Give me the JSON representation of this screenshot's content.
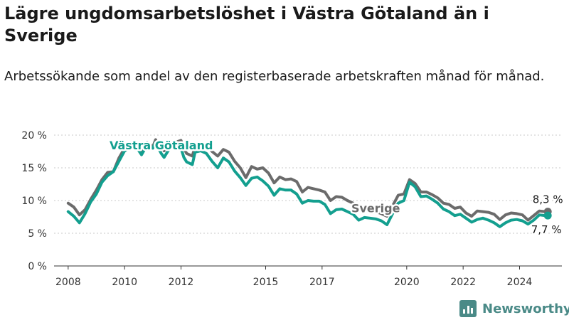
{
  "header": {
    "title": "Lägre ungdomsarbetslöshet i Västra Götaland än i Sverige",
    "subtitle": "Arbetssökande som andel av den registerbaserade arbetskraften månad för månad."
  },
  "brand": {
    "name": "Newsworthy",
    "icon": "bar-chart-logo-icon",
    "color": "#4a8a87"
  },
  "chart_data": {
    "type": "line",
    "title": "Lägre ungdomsarbetslöshet i Västra Götaland än i Sverige",
    "subtitle": "Arbetssökande som andel av den registerbaserade arbetskraften månad för månad.",
    "xlabel": "",
    "ylabel": "",
    "x_ticks": [
      "2008",
      "2010",
      "2012",
      "2015",
      "2017",
      "2020",
      "2022",
      "2024"
    ],
    "x_tick_years": [
      2008,
      2010,
      2012,
      2015,
      2017,
      2020,
      2022,
      2024
    ],
    "xlim": [
      2007.5,
      2025.5
    ],
    "y_ticks": [
      "0 %",
      "5 %",
      "10 %",
      "15 %",
      "20 %"
    ],
    "y_tick_values": [
      0,
      5,
      10,
      15,
      20
    ],
    "ylim": [
      0,
      20
    ],
    "grid": "horizontal-dashed",
    "legend": "inline-labels",
    "series": [
      {
        "name": "Sverige",
        "color": "#6b6b6b",
        "label_at": [
          2018.9,
          8.2
        ],
        "end_label": "8,3 %",
        "points": [
          [
            2008.0,
            9.6
          ],
          [
            2008.2,
            9.0
          ],
          [
            2008.4,
            7.8
          ],
          [
            2008.6,
            8.6
          ],
          [
            2008.8,
            10.2
          ],
          [
            2009.0,
            11.6
          ],
          [
            2009.2,
            13.2
          ],
          [
            2009.4,
            14.3
          ],
          [
            2009.6,
            14.4
          ],
          [
            2009.8,
            16.5
          ],
          [
            2010.0,
            18.0
          ],
          [
            2010.2,
            18.3
          ],
          [
            2010.4,
            18.6
          ],
          [
            2010.6,
            17.6
          ],
          [
            2010.8,
            18.9
          ],
          [
            2011.0,
            18.2
          ],
          [
            2011.1,
            19.3
          ],
          [
            2011.2,
            18.6
          ],
          [
            2011.3,
            18.5
          ],
          [
            2011.4,
            17.6
          ],
          [
            2011.6,
            18.7
          ],
          [
            2011.8,
            18.9
          ],
          [
            2012.0,
            19.2
          ],
          [
            2012.1,
            18.0
          ],
          [
            2012.2,
            17.2
          ],
          [
            2012.4,
            16.8
          ],
          [
            2012.5,
            18.3
          ],
          [
            2012.7,
            18.5
          ],
          [
            2012.9,
            18.6
          ],
          [
            2013.1,
            17.5
          ],
          [
            2013.3,
            16.8
          ],
          [
            2013.5,
            17.8
          ],
          [
            2013.7,
            17.4
          ],
          [
            2013.9,
            16.0
          ],
          [
            2014.1,
            15.0
          ],
          [
            2014.3,
            13.5
          ],
          [
            2014.5,
            15.2
          ],
          [
            2014.7,
            14.8
          ],
          [
            2014.9,
            15.0
          ],
          [
            2015.1,
            14.2
          ],
          [
            2015.3,
            12.7
          ],
          [
            2015.5,
            13.6
          ],
          [
            2015.7,
            13.2
          ],
          [
            2015.9,
            13.3
          ],
          [
            2016.1,
            12.9
          ],
          [
            2016.3,
            11.3
          ],
          [
            2016.5,
            12.0
          ],
          [
            2016.7,
            11.8
          ],
          [
            2016.9,
            11.6
          ],
          [
            2017.1,
            11.3
          ],
          [
            2017.3,
            10.0
          ],
          [
            2017.5,
            10.6
          ],
          [
            2017.7,
            10.5
          ],
          [
            2017.9,
            10.0
          ],
          [
            2018.1,
            9.6
          ],
          [
            2018.3,
            8.6
          ],
          [
            2018.5,
            9.0
          ],
          [
            2018.7,
            8.6
          ],
          [
            2018.9,
            8.3
          ],
          [
            2019.1,
            8.0
          ],
          [
            2019.3,
            7.6
          ],
          [
            2019.5,
            9.2
          ],
          [
            2019.7,
            10.8
          ],
          [
            2019.9,
            11.0
          ],
          [
            2020.1,
            13.2
          ],
          [
            2020.3,
            12.6
          ],
          [
            2020.5,
            11.3
          ],
          [
            2020.7,
            11.3
          ],
          [
            2020.9,
            10.9
          ],
          [
            2021.1,
            10.4
          ],
          [
            2021.3,
            9.6
          ],
          [
            2021.5,
            9.4
          ],
          [
            2021.7,
            8.8
          ],
          [
            2021.9,
            9.0
          ],
          [
            2022.1,
            8.1
          ],
          [
            2022.3,
            7.6
          ],
          [
            2022.5,
            8.4
          ],
          [
            2022.7,
            8.3
          ],
          [
            2022.9,
            8.2
          ],
          [
            2023.1,
            7.9
          ],
          [
            2023.3,
            7.1
          ],
          [
            2023.5,
            7.8
          ],
          [
            2023.7,
            8.1
          ],
          [
            2023.9,
            8.0
          ],
          [
            2024.1,
            7.8
          ],
          [
            2024.3,
            7.0
          ],
          [
            2024.5,
            7.7
          ],
          [
            2024.7,
            8.4
          ],
          [
            2024.9,
            8.3
          ],
          [
            2025.0,
            8.3
          ]
        ]
      },
      {
        "name": "Västra Götaland",
        "color": "#139f8f",
        "label_at": [
          2011.3,
          17.8
        ],
        "end_label": "7,7 %",
        "points": [
          [
            2008.0,
            8.3
          ],
          [
            2008.2,
            7.6
          ],
          [
            2008.4,
            6.6
          ],
          [
            2008.6,
            8.0
          ],
          [
            2008.8,
            9.8
          ],
          [
            2009.0,
            11.0
          ],
          [
            2009.2,
            12.8
          ],
          [
            2009.4,
            13.8
          ],
          [
            2009.6,
            14.4
          ],
          [
            2009.8,
            16.0
          ],
          [
            2010.0,
            17.6
          ],
          [
            2010.2,
            18.1
          ],
          [
            2010.4,
            18.3
          ],
          [
            2010.6,
            17.0
          ],
          [
            2010.8,
            18.5
          ],
          [
            2011.0,
            18.0
          ],
          [
            2011.1,
            18.9
          ],
          [
            2011.2,
            18.0
          ],
          [
            2011.3,
            17.2
          ],
          [
            2011.4,
            16.6
          ],
          [
            2011.6,
            18.0
          ],
          [
            2011.8,
            18.2
          ],
          [
            2012.0,
            18.0
          ],
          [
            2012.1,
            16.6
          ],
          [
            2012.2,
            15.9
          ],
          [
            2012.4,
            15.5
          ],
          [
            2012.5,
            17.4
          ],
          [
            2012.7,
            17.6
          ],
          [
            2012.9,
            17.2
          ],
          [
            2013.1,
            16.0
          ],
          [
            2013.3,
            15.0
          ],
          [
            2013.5,
            16.5
          ],
          [
            2013.7,
            15.9
          ],
          [
            2013.9,
            14.5
          ],
          [
            2014.1,
            13.5
          ],
          [
            2014.3,
            12.3
          ],
          [
            2014.5,
            13.4
          ],
          [
            2014.7,
            13.6
          ],
          [
            2014.9,
            13.0
          ],
          [
            2015.1,
            12.2
          ],
          [
            2015.3,
            10.8
          ],
          [
            2015.5,
            11.8
          ],
          [
            2015.7,
            11.6
          ],
          [
            2015.9,
            11.6
          ],
          [
            2016.1,
            11.0
          ],
          [
            2016.3,
            9.6
          ],
          [
            2016.5,
            10.0
          ],
          [
            2016.7,
            9.9
          ],
          [
            2016.9,
            9.9
          ],
          [
            2017.1,
            9.4
          ],
          [
            2017.3,
            8.0
          ],
          [
            2017.5,
            8.6
          ],
          [
            2017.7,
            8.7
          ],
          [
            2017.9,
            8.3
          ],
          [
            2018.1,
            7.9
          ],
          [
            2018.3,
            7.0
          ],
          [
            2018.5,
            7.4
          ],
          [
            2018.7,
            7.3
          ],
          [
            2018.9,
            7.2
          ],
          [
            2019.1,
            6.9
          ],
          [
            2019.3,
            6.3
          ],
          [
            2019.5,
            8.0
          ],
          [
            2019.7,
            9.6
          ],
          [
            2019.9,
            10.0
          ],
          [
            2020.1,
            12.8
          ],
          [
            2020.3,
            12.1
          ],
          [
            2020.5,
            10.6
          ],
          [
            2020.7,
            10.7
          ],
          [
            2020.9,
            10.2
          ],
          [
            2021.1,
            9.6
          ],
          [
            2021.3,
            8.7
          ],
          [
            2021.5,
            8.3
          ],
          [
            2021.7,
            7.7
          ],
          [
            2021.9,
            7.9
          ],
          [
            2022.1,
            7.3
          ],
          [
            2022.3,
            6.7
          ],
          [
            2022.5,
            7.1
          ],
          [
            2022.7,
            7.3
          ],
          [
            2022.9,
            7.0
          ],
          [
            2023.1,
            6.6
          ],
          [
            2023.3,
            6.0
          ],
          [
            2023.5,
            6.6
          ],
          [
            2023.7,
            7.0
          ],
          [
            2023.9,
            7.1
          ],
          [
            2024.1,
            6.9
          ],
          [
            2024.3,
            6.4
          ],
          [
            2024.5,
            7.0
          ],
          [
            2024.7,
            7.8
          ],
          [
            2024.9,
            7.7
          ],
          [
            2025.0,
            7.7
          ]
        ]
      }
    ]
  }
}
